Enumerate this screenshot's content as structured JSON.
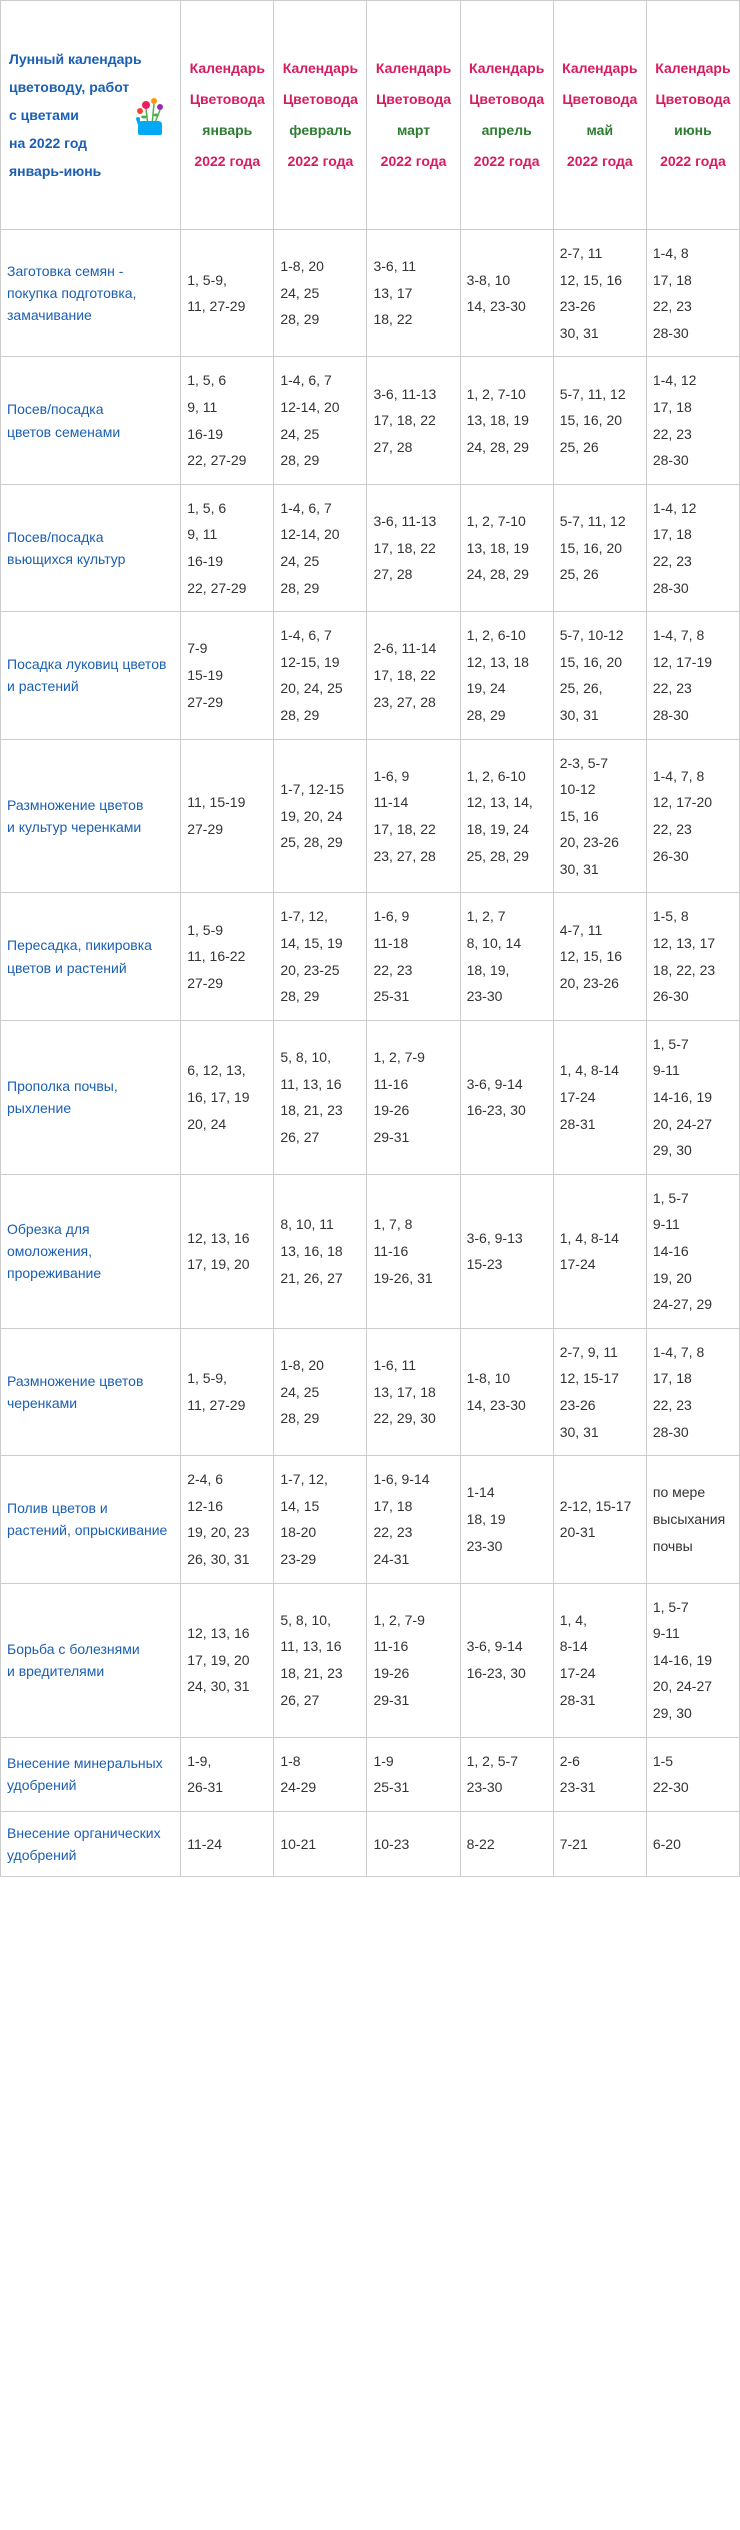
{
  "header": {
    "title_lines": "Лунный календарь\nцветоводу, работ\nс цветами\nна 2022 год\nянварь-июнь",
    "column_label_top": "Календарь",
    "column_label_mid": "Цветовода",
    "column_year": "2022 года",
    "months": [
      "январь",
      "февраль",
      "март",
      "апрель",
      "май",
      "июнь"
    ]
  },
  "rows": [
    {
      "activity": "Заготовка семян - покупка подготовка,  замачивание",
      "cells": [
        "1, 5-9,\n11, 27-29",
        "1-8, 20\n24, 25\n28, 29",
        "3-6, 11\n13, 17\n18, 22",
        "3-8, 10\n14, 23-30",
        "2-7, 11\n12, 15, 16\n23-26\n30, 31",
        "1-4, 8\n17, 18\n22, 23\n28-30"
      ]
    },
    {
      "activity": "Посев/посадка\nцветов семенами",
      "cells": [
        "1, 5, 6\n9, 11\n16-19\n22, 27-29",
        "1-4, 6, 7\n12-14, 20\n24, 25\n28, 29",
        "3-6, 11-13\n17, 18, 22\n27, 28",
        "1, 2, 7-10\n13, 18, 19\n24, 28, 29",
        "5-7, 11, 12\n15, 16, 20\n25, 26",
        "1-4, 12\n17, 18\n22, 23\n28-30"
      ]
    },
    {
      "activity": "Посев/посадка\nвьющихся культур",
      "cells": [
        "1, 5, 6\n9, 11\n16-19\n22, 27-29",
        "1-4, 6, 7\n12-14, 20\n24, 25\n28, 29",
        "3-6, 11-13\n17, 18, 22\n27, 28",
        "1, 2, 7-10\n13, 18, 19\n24, 28, 29",
        "5-7, 11, 12\n15, 16, 20\n25, 26",
        "1-4, 12\n17, 18\n22, 23\n28-30"
      ]
    },
    {
      "activity": "Посадка луковиц цветов и растений",
      "cells": [
        "7-9\n15-19\n27-29",
        "1-4, 6, 7\n12-15, 19\n20, 24, 25\n28, 29",
        "2-6, 11-14\n17, 18, 22\n23, 27, 28",
        "1, 2, 6-10\n12, 13, 18\n19, 24\n28, 29",
        "5-7, 10-12\n15, 16, 20\n25, 26,\n30, 31",
        "1-4, 7, 8\n12, 17-19\n22, 23\n28-30"
      ]
    },
    {
      "activity": "Размножение цветов\nи культур черенками",
      "cells": [
        "11, 15-19\n27-29",
        "1-7, 12-15\n19, 20, 24\n25, 28, 29",
        "1-6, 9\n11-14\n17, 18, 22\n23, 27, 28",
        "1, 2, 6-10\n12, 13, 14,\n18, 19, 24\n25, 28, 29",
        "2-3, 5-7\n10-12\n15, 16\n20, 23-26\n30, 31",
        "1-4, 7, 8\n12, 17-20\n22, 23\n26-30"
      ]
    },
    {
      "activity": "Пересадка, пикировка цветов и растений",
      "cells": [
        "1, 5-9\n11, 16-22\n27-29",
        "1-7, 12,\n14, 15, 19\n20, 23-25\n28, 29",
        "1-6, 9\n11-18\n22, 23\n25-31",
        "1, 2, 7\n8, 10, 14\n18, 19,\n23-30",
        "4-7, 11\n12, 15, 16\n20, 23-26",
        "1-5, 8\n12, 13, 17\n18, 22, 23\n26-30"
      ]
    },
    {
      "activity": "Прополка почвы,\nрыхление",
      "cells": [
        "6, 12, 13,\n16, 17, 19\n20, 24",
        "5, 8, 10,\n11, 13, 16\n18, 21, 23\n26, 27",
        "1, 2, 7-9\n11-16\n19-26\n29-31",
        "3-6, 9-14\n16-23, 30",
        "1, 4, 8-14\n17-24\n28-31",
        "1, 5-7\n9-11\n14-16, 19\n20, 24-27\n29, 30"
      ]
    },
    {
      "activity": "Обрезка для омоложения, прореживание",
      "cells": [
        "12, 13, 16\n17, 19, 20",
        "8, 10, 11\n13, 16, 18\n21, 26, 27",
        "1, 7, 8\n11-16\n19-26, 31",
        "3-6, 9-13\n15-23",
        "1, 4, 8-14\n17-24",
        "1, 5-7\n9-11\n14-16\n19, 20\n24-27, 29"
      ]
    },
    {
      "activity": "Размножение цветов\nчеренками",
      "cells": [
        "1, 5-9,\n11, 27-29",
        "1-8, 20\n24, 25\n28, 29",
        "1-6, 11\n13, 17, 18\n22, 29, 30",
        "1-8, 10\n14, 23-30",
        "2-7, 9, 11\n12, 15-17\n23-26\n30, 31",
        "1-4, 7, 8\n17, 18\n22, 23\n28-30"
      ]
    },
    {
      "activity": "Полив цветов и\nрастений,  опрыскивание",
      "cells": [
        "2-4, 6\n12-16\n19, 20, 23\n26, 30, 31",
        "1-7, 12,\n14, 15\n18-20\n23-29",
        "1-6, 9-14\n17, 18\n22, 23\n24-31",
        "1-14\n18, 19\n23-30",
        "2-12, 15-17\n20-31",
        "по мере\nвысыхания\nпочвы"
      ]
    },
    {
      "activity": "Борьба с болезнями\nи вредителями",
      "cells": [
        "12, 13, 16\n17, 19, 20\n24, 30, 31",
        "5, 8, 10,\n11, 13, 16\n18, 21, 23\n26, 27",
        "1, 2, 7-9\n11-16\n19-26\n29-31",
        "3-6, 9-14\n16-23, 30",
        "1, 4,\n8-14\n17-24\n28-31",
        "1, 5-7\n9-11\n14-16, 19\n20, 24-27\n29, 30"
      ]
    },
    {
      "activity": "Внесение минеральных удобрений",
      "cells": [
        "1-9,\n26-31",
        "1-8\n24-29",
        "1-9\n25-31",
        "1, 2, 5-7\n23-30",
        "2-6\n23-31",
        "1-5\n22-30"
      ]
    },
    {
      "activity": "Внесение органических удобрений",
      "cells": [
        "11-24",
        "10-21",
        "10-23",
        "8-22",
        "7-21",
        "6-20"
      ]
    }
  ]
}
